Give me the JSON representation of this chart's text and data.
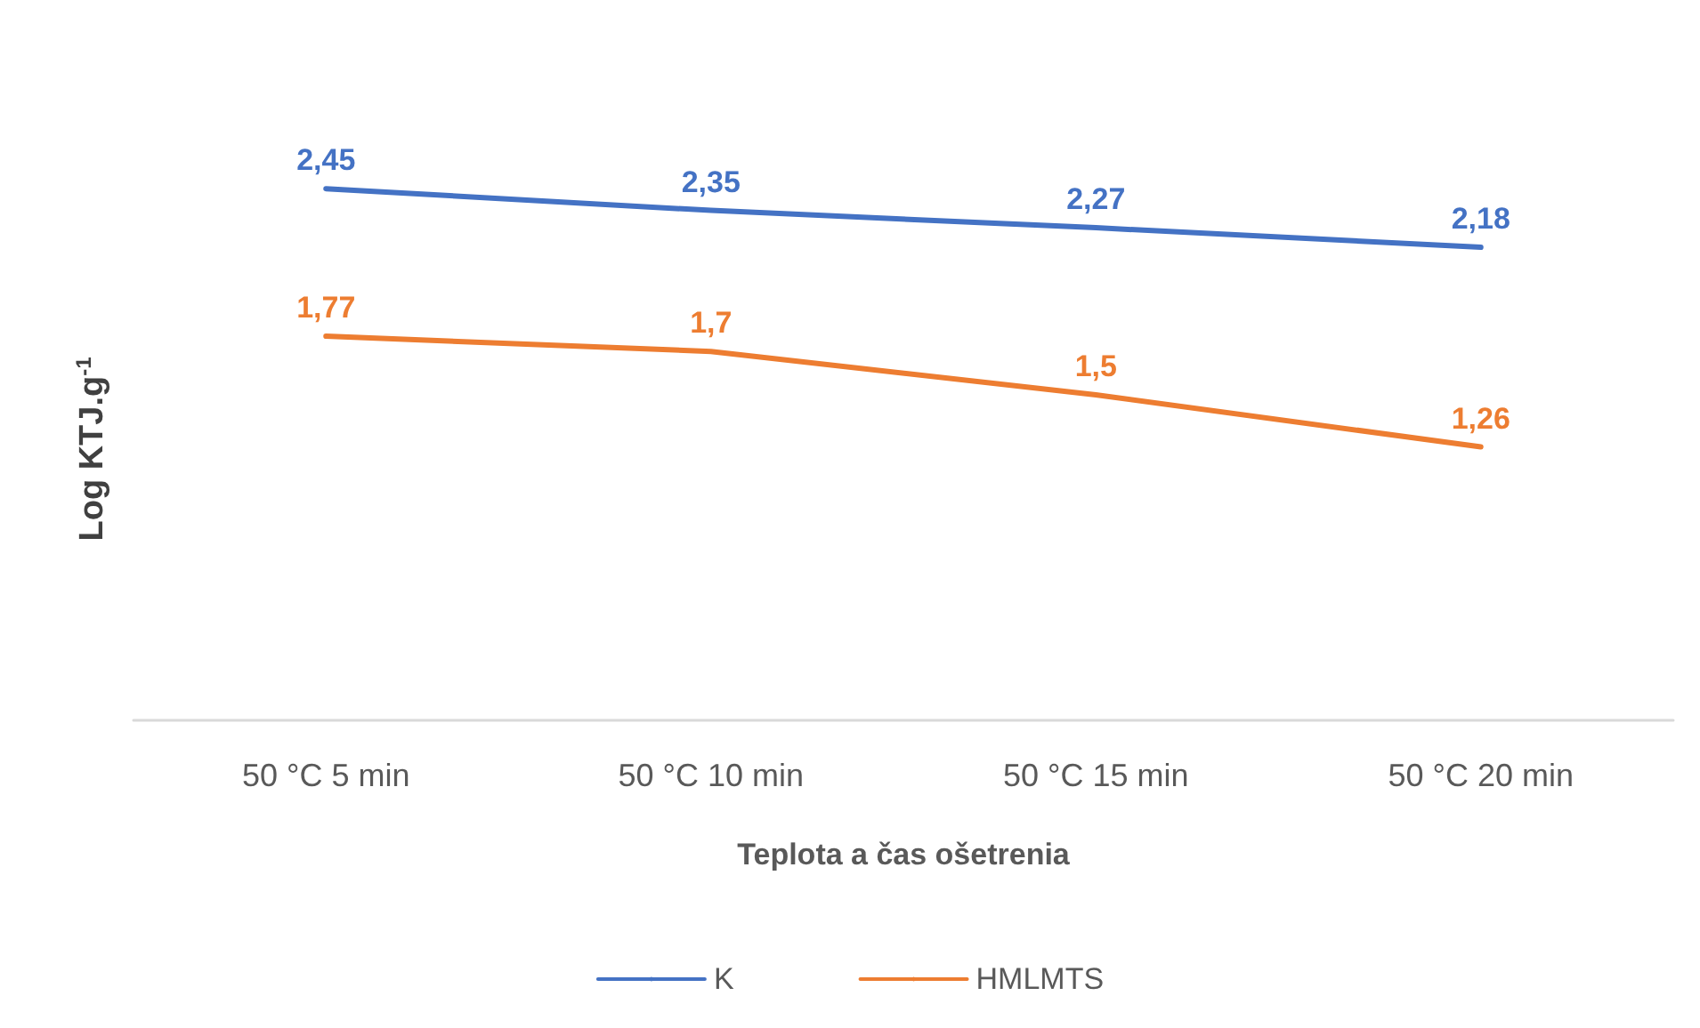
{
  "chart_data": {
    "type": "line",
    "xlabel": "Teplota a čas ošetrenia",
    "ylabel": "Log KTJ.g$^{-1}$",
    "categories": [
      "50 °C 5 min",
      "50 °C 10 min",
      "50 °C 15 min",
      "50 °C 20 min"
    ],
    "series": [
      {
        "name": "K",
        "color": "#4472c4",
        "values": [
          2.45,
          2.35,
          2.27,
          2.18
        ],
        "value_labels": [
          "2,45",
          "2,35",
          "2,27",
          "2,18"
        ]
      },
      {
        "name": "HMLMTS",
        "color": "#ed7d31",
        "values": [
          1.77,
          1.7,
          1.5,
          1.26
        ],
        "value_labels": [
          "1,77",
          "1,7",
          "1,5",
          "1,26"
        ]
      }
    ],
    "marker": "none",
    "line_style": "solid",
    "grid": false,
    "legend": "bottom"
  }
}
